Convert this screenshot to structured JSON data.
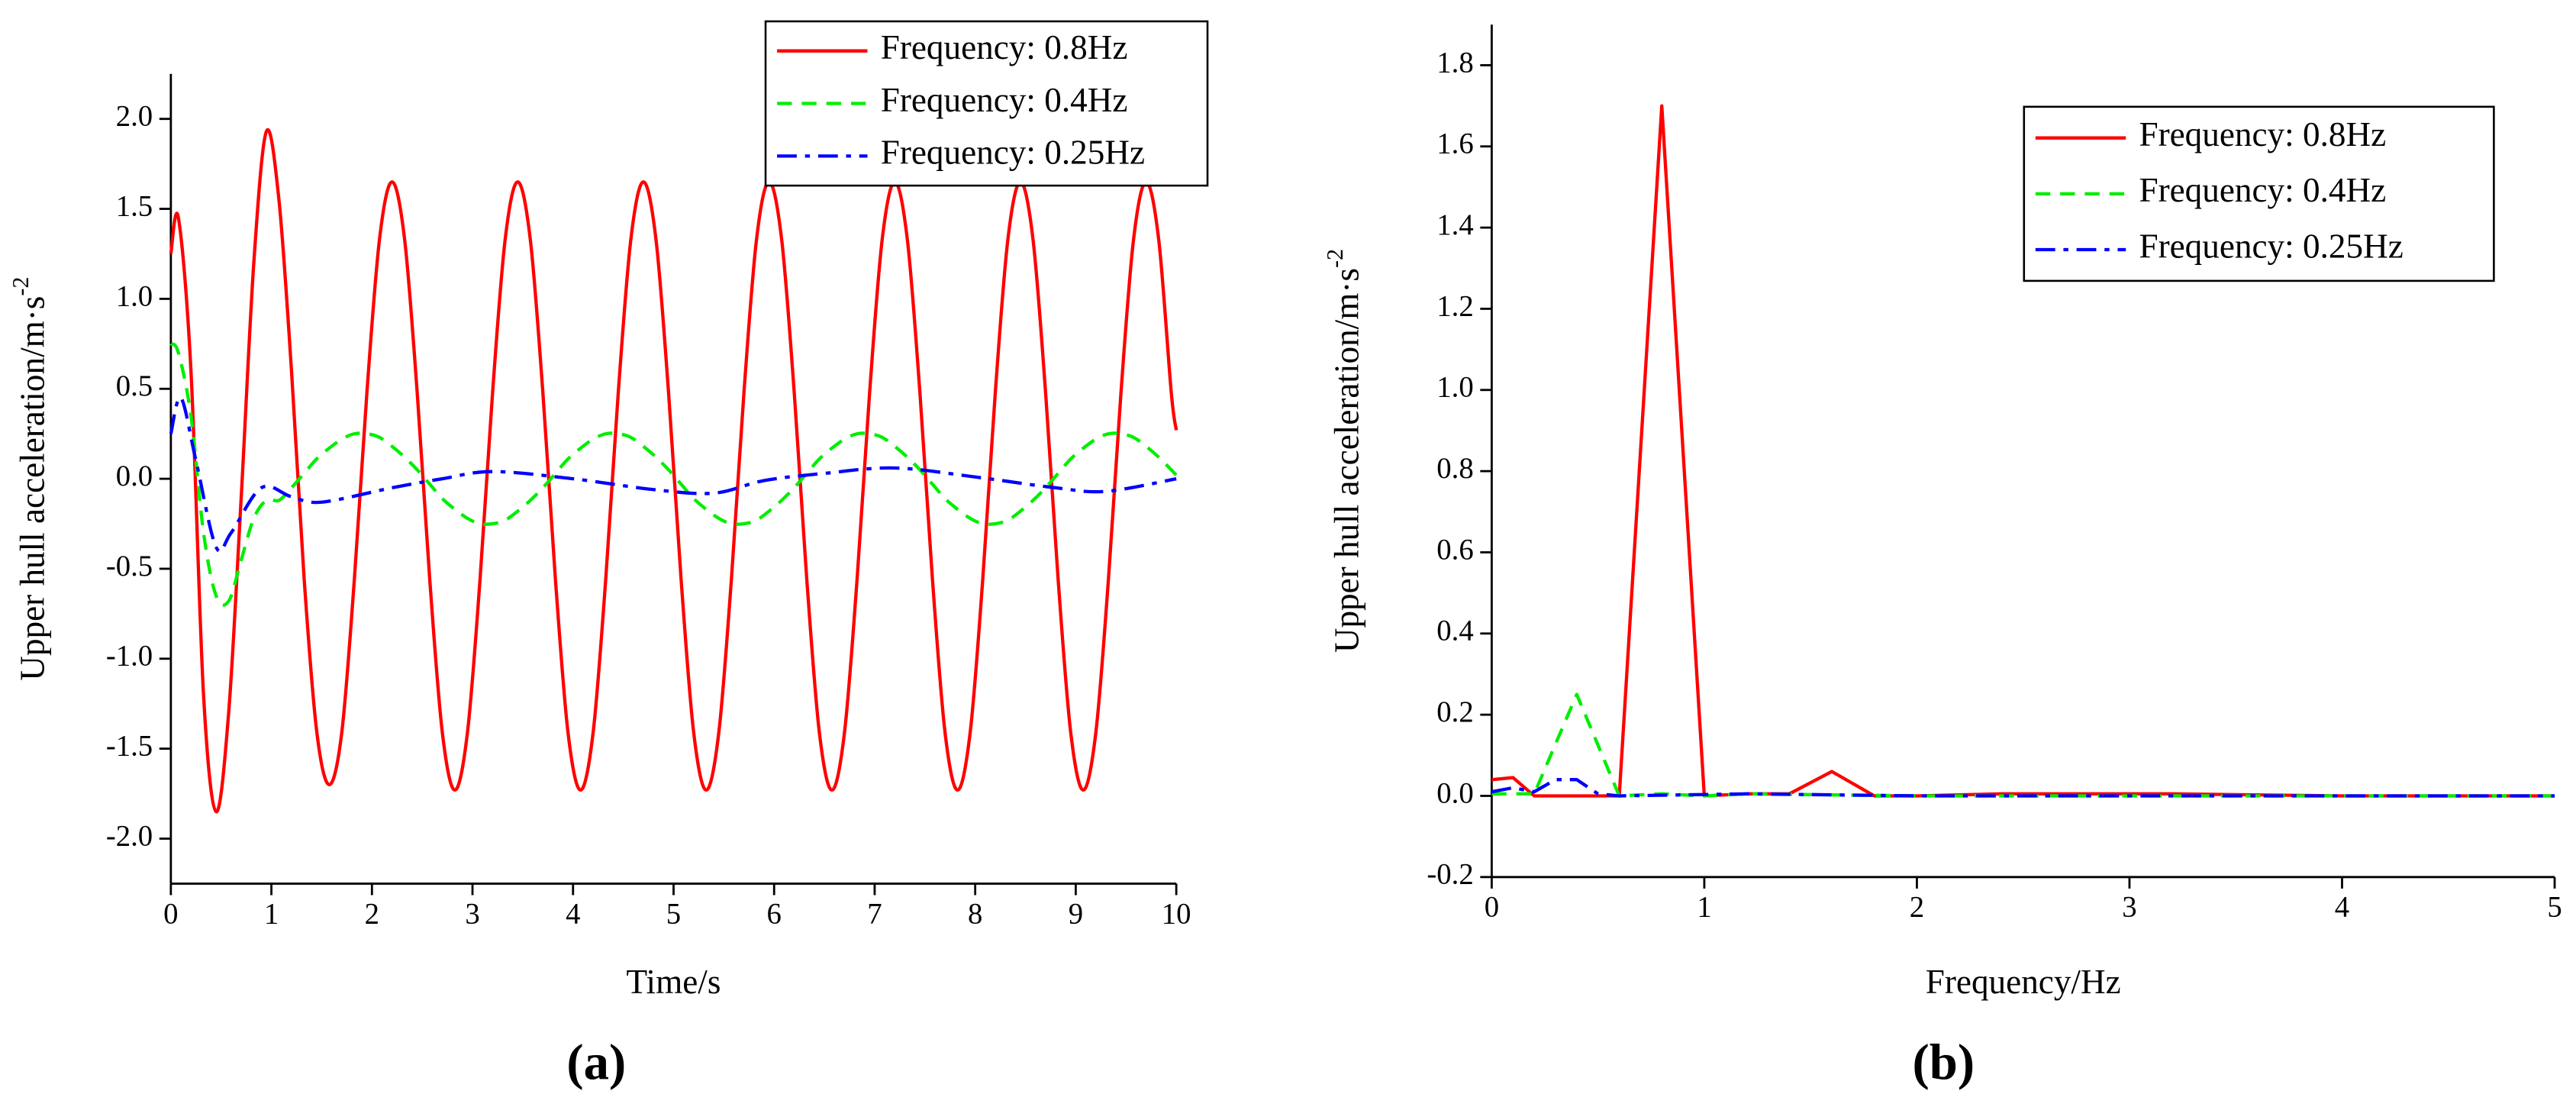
{
  "chart_data": [
    {
      "type": "line",
      "xlabel": "Time/s",
      "ylabel": "Upper hull acceleration/m·s",
      "ylabel_sup": "-2",
      "caption": "(a)",
      "legend": "upper right",
      "x": [
        0,
        0.075,
        0.2,
        0.325,
        0.45,
        0.575,
        0.7,
        0.825,
        0.95,
        1.075,
        1.2,
        1.325,
        1.45,
        1.575,
        1.7,
        1.825,
        1.95,
        2.075,
        2.2,
        2.325,
        2.45,
        2.575,
        2.7,
        2.825,
        2.95,
        3.075,
        3.2,
        3.325,
        3.45,
        3.575,
        3.7,
        3.825,
        3.95,
        4.075,
        4.2,
        4.325,
        4.45,
        4.575,
        4.7,
        4.825,
        4.95,
        5.075,
        5.2,
        5.325,
        5.45,
        5.575,
        5.7,
        5.825,
        5.95,
        6.075,
        6.2,
        6.325,
        6.45,
        6.575,
        6.7,
        6.825,
        6.95,
        7.075,
        7.2,
        7.325,
        7.45,
        7.575,
        7.7,
        7.825,
        7.95,
        8.075,
        8.2,
        8.325,
        8.45,
        8.575,
        8.7,
        8.825,
        8.95,
        9.075,
        9.2,
        9.325,
        9.45,
        9.575,
        9.7,
        9.825,
        9.95,
        10
      ],
      "xlim": [
        0,
        10
      ],
      "xticks": [
        0,
        1,
        2,
        3,
        4,
        5,
        6,
        7,
        8,
        9,
        10
      ],
      "ylim": [
        -2.25,
        2.25
      ],
      "yticks": [
        {
          "value": -2,
          "label": "-2.0"
        },
        -1.5,
        {
          "value": -1,
          "label": "-1.0"
        },
        -0.5,
        {
          "value": 0,
          "label": "0.0"
        },
        0.5,
        {
          "value": 1,
          "label": "1.0"
        },
        1.5,
        {
          "value": 2,
          "label": "2.0"
        }
      ],
      "series": [
        {
          "name": "Frequency: 0.8Hz",
          "color": "#ff0000",
          "linestyle": "solid",
          "values": [
            1.25,
            1.45,
            0.6,
            -1.2,
            -1.85,
            -1.3,
            -0.1,
            1.2,
            1.93,
            1.55,
            0.6,
            -0.55,
            -1.4,
            -1.7,
            -1.41,
            -0.56,
            0.48,
            1.33,
            1.65,
            1.33,
            0.48,
            -0.56,
            -1.41,
            -1.73,
            -1.41,
            -0.56,
            0.48,
            1.33,
            1.65,
            1.33,
            0.48,
            -0.56,
            -1.41,
            -1.73,
            -1.41,
            -0.56,
            0.48,
            1.33,
            1.65,
            1.33,
            0.48,
            -0.56,
            -1.41,
            -1.73,
            -1.41,
            -0.56,
            0.48,
            1.33,
            1.65,
            1.33,
            0.48,
            -0.56,
            -1.41,
            -1.73,
            -1.41,
            -0.56,
            0.48,
            1.33,
            1.65,
            1.33,
            0.48,
            -0.56,
            -1.41,
            -1.73,
            -1.41,
            -0.56,
            0.48,
            1.33,
            1.65,
            1.33,
            0.48,
            -0.56,
            -1.41,
            -1.73,
            -1.41,
            -0.56,
            0.48,
            1.33,
            1.65,
            1.33,
            0.48,
            0.27
          ]
        },
        {
          "name": "Frequency: 0.4Hz",
          "color": "#00ee00",
          "linestyle": "dashed",
          "values": [
            0.75,
            0.7,
            0.35,
            -0.3,
            -0.65,
            -0.68,
            -0.45,
            -0.22,
            -0.12,
            -0.12,
            -0.05,
            0.03,
            0.11,
            0.17,
            0.22,
            0.25,
            0.25,
            0.23,
            0.18,
            0.12,
            0.05,
            -0.03,
            -0.11,
            -0.17,
            -0.22,
            -0.25,
            -0.25,
            -0.23,
            -0.18,
            -0.12,
            -0.05,
            0.03,
            0.11,
            0.17,
            0.22,
            0.25,
            0.25,
            0.23,
            0.18,
            0.12,
            0.05,
            -0.03,
            -0.11,
            -0.17,
            -0.22,
            -0.25,
            -0.25,
            -0.23,
            -0.18,
            -0.12,
            -0.05,
            0.03,
            0.11,
            0.17,
            0.22,
            0.25,
            0.25,
            0.23,
            0.18,
            0.12,
            0.05,
            -0.03,
            -0.11,
            -0.17,
            -0.22,
            -0.25,
            -0.25,
            -0.23,
            -0.18,
            -0.12,
            -0.05,
            0.03,
            0.11,
            0.17,
            0.22,
            0.25,
            0.25,
            0.23,
            0.18,
            0.12,
            0.05,
            0.02
          ]
        },
        {
          "name": "Frequency: 0.25Hz",
          "color": "#0000ff",
          "linestyle": "dashdot",
          "x": [
            0,
            0.1,
            0.25,
            0.45,
            0.6,
            0.9,
            1.2,
            1.5,
            2.2,
            2.7,
            3.2,
            4.0,
            4.8,
            5.4,
            5.9,
            6.5,
            7.2,
            8.0,
            8.8,
            9.3,
            10
          ],
          "values": [
            0.25,
            0.45,
            0.1,
            -0.38,
            -0.3,
            -0.05,
            -0.1,
            -0.13,
            -0.05,
            0,
            0.04,
            0,
            -0.06,
            -0.08,
            -0.01,
            0.03,
            0.06,
            0.01,
            -0.05,
            -0.07,
            0
          ]
        }
      ]
    },
    {
      "type": "line",
      "xlabel": "Frequency/Hz",
      "ylabel": "Upper hull acceleration/m·s",
      "ylabel_sup": "-2",
      "caption": "(b)",
      "legend": "upper right",
      "xlim": [
        0,
        5
      ],
      "xticks": [
        0,
        1,
        2,
        3,
        4,
        5
      ],
      "ylim": [
        -0.2,
        1.9
      ],
      "yticks": [
        -0.2,
        {
          "value": 0,
          "label": "0.0"
        },
        0.2,
        0.4,
        0.6,
        0.8,
        {
          "value": 1,
          "label": "1.0"
        },
        1.2,
        1.4,
        1.6,
        1.8
      ],
      "series": [
        {
          "name": "Frequency: 0.8Hz",
          "color": "#ff0000",
          "linestyle": "solid",
          "x": [
            0,
            0.1,
            0.2,
            0.4,
            0.6,
            0.8,
            1.0,
            1.2,
            1.4,
            1.6,
            1.8,
            2.0,
            2.4,
            3.2,
            4,
            5
          ],
          "values": [
            0.04,
            0.045,
            0,
            0,
            0,
            1.7,
            0,
            0.005,
            0.005,
            0.06,
            0,
            0,
            0.005,
            0.005,
            0,
            0
          ]
        },
        {
          "name": "Frequency: 0.4Hz",
          "color": "#00ee00",
          "linestyle": "dashed",
          "x": [
            0,
            0.2,
            0.4,
            0.6,
            0.8,
            1.0,
            1.2,
            2,
            3,
            4,
            5
          ],
          "values": [
            0.005,
            0.005,
            0.25,
            0,
            0.005,
            0,
            0.005,
            0,
            0,
            0,
            0
          ]
        },
        {
          "name": "Frequency: 0.25Hz",
          "color": "#0000ff",
          "linestyle": "dashdot",
          "x": [
            0,
            0.1,
            0.2,
            0.3,
            0.4,
            0.5,
            0.6,
            1.2,
            2,
            3,
            4,
            5
          ],
          "values": [
            0.01,
            0.02,
            0.01,
            0.04,
            0.04,
            0.005,
            0,
            0.005,
            0,
            0,
            0,
            0
          ]
        }
      ]
    }
  ]
}
